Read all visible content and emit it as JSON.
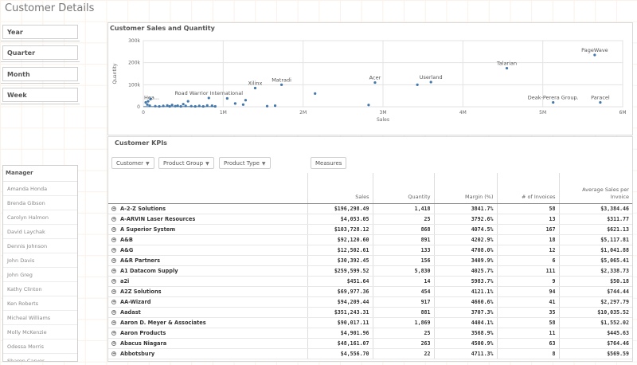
{
  "page": {
    "title": "Customer Details"
  },
  "filters": [
    "Year",
    "Quarter",
    "Month",
    "Week"
  ],
  "manager": {
    "header": "Manager",
    "items": [
      "Amanda Honda",
      "Brenda Gibson",
      "Carolyn Halmon",
      "David Laychak",
      "Dennis Johnson",
      "John Davis",
      "John Greg",
      "Kathy Clinton",
      "Ken Roberts",
      "Micheal Williams",
      "Molly McKenzie",
      "Odessa Morris",
      "Sharon Carver"
    ]
  },
  "chart": {
    "title": "Customer Sales and Quantity",
    "accent": "#4477aa",
    "chart_data": {
      "type": "scatter",
      "title": "Customer Sales and Quantity",
      "xlabel": "Sales",
      "ylabel": "Quantity",
      "xlim": [
        0,
        6000000
      ],
      "ylim": [
        0,
        300000
      ],
      "xticks": [
        {
          "v": 0,
          "l": "0"
        },
        {
          "v": 1000000,
          "l": "1M"
        },
        {
          "v": 2000000,
          "l": "2M"
        },
        {
          "v": 3000000,
          "l": "3M"
        },
        {
          "v": 4000000,
          "l": "4M"
        },
        {
          "v": 5000000,
          "l": "5M"
        },
        {
          "v": 6000000,
          "l": "6M"
        }
      ],
      "yticks": [
        {
          "v": 0,
          "l": "0"
        },
        {
          "v": 100000,
          "l": "100k"
        },
        {
          "v": 200000,
          "l": "200k"
        },
        {
          "v": 300000,
          "l": "300k"
        }
      ],
      "points": [
        {
          "x": 30000,
          "y": 20000,
          "label": "Hea..."
        },
        {
          "x": 60000,
          "y": 25000
        },
        {
          "x": 90000,
          "y": 35000
        },
        {
          "x": 50000,
          "y": 10000
        },
        {
          "x": 80000,
          "y": 5000
        },
        {
          "x": 150000,
          "y": 3000
        },
        {
          "x": 200000,
          "y": 2000
        },
        {
          "x": 250000,
          "y": 4000
        },
        {
          "x": 300000,
          "y": 6000
        },
        {
          "x": 330000,
          "y": 2000
        },
        {
          "x": 360000,
          "y": 8000
        },
        {
          "x": 400000,
          "y": 3000
        },
        {
          "x": 430000,
          "y": 5000
        },
        {
          "x": 470000,
          "y": 2000
        },
        {
          "x": 500000,
          "y": 12000
        },
        {
          "x": 530000,
          "y": 4000
        },
        {
          "x": 560000,
          "y": 25000
        },
        {
          "x": 600000,
          "y": 3000
        },
        {
          "x": 650000,
          "y": 2000
        },
        {
          "x": 700000,
          "y": 4000
        },
        {
          "x": 750000,
          "y": 2000
        },
        {
          "x": 800000,
          "y": 6000
        },
        {
          "x": 820000,
          "y": 40000,
          "label": "Road Warrior International"
        },
        {
          "x": 860000,
          "y": 5000
        },
        {
          "x": 900000,
          "y": 2000
        },
        {
          "x": 1050000,
          "y": 38000
        },
        {
          "x": 1150000,
          "y": 15000
        },
        {
          "x": 1250000,
          "y": 10000
        },
        {
          "x": 1280000,
          "y": 30000
        },
        {
          "x": 1400000,
          "y": 85000,
          "label": "Xilinx"
        },
        {
          "x": 1550000,
          "y": 3000
        },
        {
          "x": 1650000,
          "y": 5000
        },
        {
          "x": 1730000,
          "y": 100000,
          "label": "Matradi"
        },
        {
          "x": 2150000,
          "y": 60000
        },
        {
          "x": 2820000,
          "y": 8000
        },
        {
          "x": 2900000,
          "y": 110000,
          "label": "Acer"
        },
        {
          "x": 3430000,
          "y": 100000
        },
        {
          "x": 3600000,
          "y": 112000,
          "label": "Userland"
        },
        {
          "x": 4550000,
          "y": 175000,
          "label": "Talarian"
        },
        {
          "x": 5130000,
          "y": 20000,
          "label": "Deak-Perera Group."
        },
        {
          "x": 5650000,
          "y": 235000,
          "label": "PageWave"
        },
        {
          "x": 5720000,
          "y": 20000,
          "label": "Paracel"
        }
      ]
    }
  },
  "kpi": {
    "title": "Customer KPIs",
    "buttons": [
      "Customer",
      "Product Group",
      "Product Type"
    ],
    "measures_label": "Measures",
    "columns": [
      "",
      "Sales",
      "Quantity",
      "Margin (%)",
      "# of Invoices",
      "Average Sales per Invoice"
    ],
    "rows": [
      [
        "A-2-Z Solutions",
        "$196,298.49",
        "1,418",
        "3841.7%",
        "58",
        "$3,384.46"
      ],
      [
        "A-ARVIN Laser Resources",
        "$4,053.05",
        "25",
        "3792.6%",
        "13",
        "$311.77"
      ],
      [
        "A Superior System",
        "$103,728.12",
        "868",
        "4074.5%",
        "167",
        "$621.13"
      ],
      [
        "A&B",
        "$92,120.60",
        "891",
        "4202.9%",
        "18",
        "$5,117.81"
      ],
      [
        "A&G",
        "$12,502.61",
        "133",
        "4708.0%",
        "12",
        "$1,041.88"
      ],
      [
        "A&R Partners",
        "$30,392.45",
        "156",
        "3409.9%",
        "6",
        "$5,065.41"
      ],
      [
        "A1 Datacom Supply",
        "$259,599.52",
        "5,830",
        "4025.7%",
        "111",
        "$2,338.73"
      ],
      [
        "a2i",
        "$451.64",
        "14",
        "5983.7%",
        "9",
        "$50.18"
      ],
      [
        "A2Z Solutions",
        "$69,977.36",
        "454",
        "4121.1%",
        "94",
        "$744.44"
      ],
      [
        "AA-Wizard",
        "$94,209.44",
        "917",
        "4660.6%",
        "41",
        "$2,297.79"
      ],
      [
        "Aadast",
        "$351,243.31",
        "881",
        "3707.3%",
        "35",
        "$10,035.52"
      ],
      [
        "Aaron D. Meyer & Associates",
        "$90,017.11",
        "1,869",
        "4404.1%",
        "58",
        "$1,552.02"
      ],
      [
        "Aaron Products",
        "$4,901.96",
        "25",
        "3568.9%",
        "11",
        "$445.63"
      ],
      [
        "Abacus Niagara",
        "$48,161.07",
        "263",
        "4500.9%",
        "63",
        "$764.46"
      ],
      [
        "Abbotsbury",
        "$4,556.70",
        "22",
        "4711.3%",
        "8",
        "$569.59"
      ]
    ]
  }
}
